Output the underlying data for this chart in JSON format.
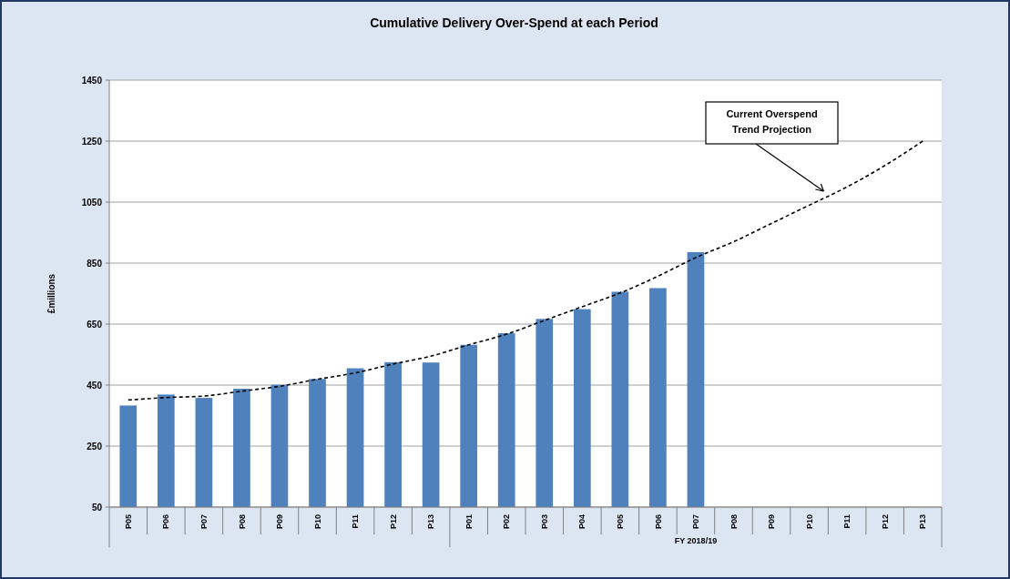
{
  "chart_data": {
    "type": "bar",
    "title": "Cumulative Delivery Over-Spend at each Period",
    "ylabel": "£millions",
    "categories": [
      "P05",
      "P06",
      "P07",
      "P08",
      "P09",
      "P10",
      "P11",
      "P12",
      "P13",
      "P01",
      "P02",
      "P03",
      "P04",
      "P05",
      "P06",
      "P07",
      "P08",
      "P09",
      "P10",
      "P11",
      "P12",
      "P13"
    ],
    "series": [
      {
        "color": "#4f81bd",
        "values": [
          383,
          419,
          408,
          438,
          451,
          470,
          505,
          525,
          524,
          582,
          620,
          667,
          699,
          756,
          768,
          886,
          null,
          null,
          null,
          null,
          null,
          null
        ]
      },
      {
        "type": "line",
        "color": "#000000",
        "line_style": "dashed",
        "marker": "none",
        "values": [
          401,
          409,
          414,
          430,
          446,
          469,
          490,
          519,
          545,
          582,
          617,
          662,
          707,
          752,
          807,
          868,
          920,
          980,
          1040,
          1100,
          1170,
          1250
        ]
      }
    ],
    "ylim": [
      50,
      1450
    ],
    "yticks": [
      50,
      250,
      450,
      650,
      850,
      1050,
      1250,
      1450
    ],
    "grid": "y",
    "annotations": [
      "Current Overspend\nTrend Projection",
      "FY 2018/19"
    ]
  }
}
